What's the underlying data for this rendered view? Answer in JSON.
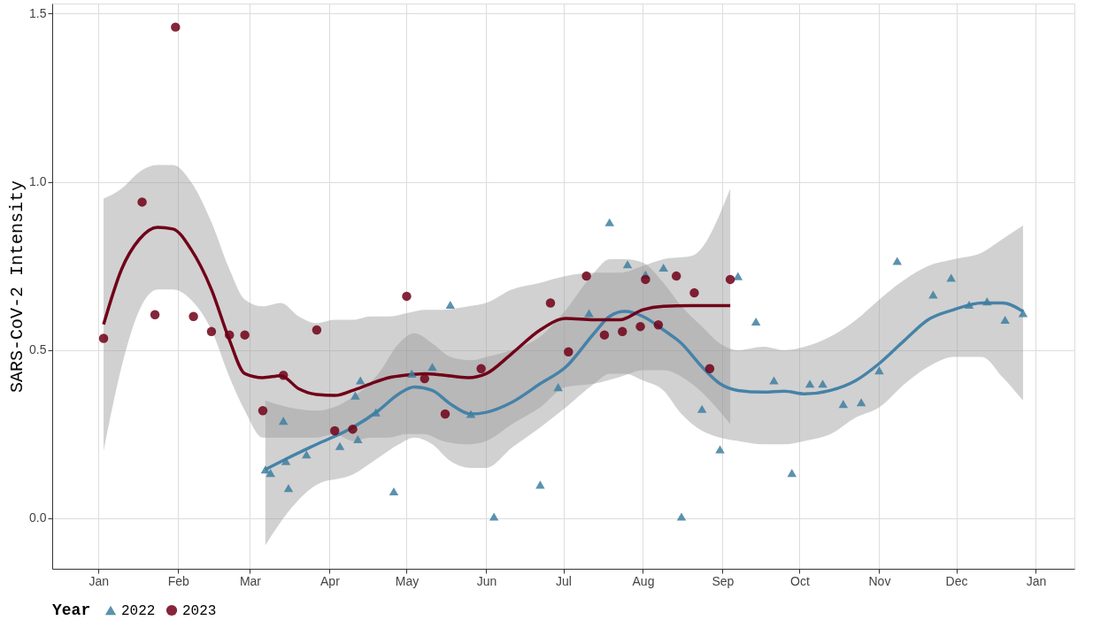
{
  "chart_data": {
    "type": "scatter",
    "ylabel": "SARS-CoV-2 Intensity",
    "legend_title": "Year",
    "legend": "bottom",
    "grid": true,
    "xlim": [
      "2022-12-14",
      "2024-01-16"
    ],
    "ylim": [
      -0.15,
      1.53
    ],
    "yticks": [
      {
        "value": 0,
        "label": "0.0"
      },
      {
        "value": 0.5,
        "label": "0.5"
      },
      {
        "value": 1,
        "label": "1.0"
      },
      {
        "value": 1.5,
        "label": "1.5"
      }
    ],
    "xticks": [
      {
        "value": "2023-01-01",
        "label": "Jan"
      },
      {
        "value": "2023-02-01",
        "label": "Feb"
      },
      {
        "value": "2023-03-01",
        "label": "Mar"
      },
      {
        "value": "2023-04-01",
        "label": "Apr"
      },
      {
        "value": "2023-05-01",
        "label": "May"
      },
      {
        "value": "2023-06-01",
        "label": "Jun"
      },
      {
        "value": "2023-07-01",
        "label": "Jul"
      },
      {
        "value": "2023-08-01",
        "label": "Aug"
      },
      {
        "value": "2023-09-01",
        "label": "Sep"
      },
      {
        "value": "2023-10-01",
        "label": "Oct"
      },
      {
        "value": "2023-11-01",
        "label": "Nov"
      },
      {
        "value": "2023-12-01",
        "label": "Dec"
      },
      {
        "value": "2024-01-01",
        "label": "Jan"
      }
    ],
    "series": [
      {
        "type": "line",
        "color": "#4682a8",
        "x": [
          "2023-03-07",
          "2023-03-16",
          "2023-03-27",
          "2023-04-10",
          "2023-04-20",
          "2023-04-28",
          "2023-05-04",
          "2023-05-11",
          "2023-05-18",
          "2023-05-26",
          "2023-06-01",
          "2023-06-11",
          "2023-06-22",
          "2023-07-02",
          "2023-07-13",
          "2023-07-19",
          "2023-07-25",
          "2023-08-01",
          "2023-08-09",
          "2023-08-16",
          "2023-08-24",
          "2023-08-31",
          "2023-09-07",
          "2023-09-17",
          "2023-09-25",
          "2023-10-03",
          "2023-10-13",
          "2023-10-23",
          "2023-11-01",
          "2023-11-11",
          "2023-11-20",
          "2023-11-30",
          "2023-12-11",
          "2023-12-19",
          "2023-12-27"
        ],
        "values": [
          0.145,
          0.18,
          0.22,
          0.27,
          0.32,
          0.37,
          0.39,
          0.38,
          0.34,
          0.31,
          0.315,
          0.345,
          0.4,
          0.45,
          0.55,
          0.6,
          0.615,
          0.6,
          0.56,
          0.52,
          0.45,
          0.4,
          0.38,
          0.375,
          0.378,
          0.37,
          0.38,
          0.41,
          0.46,
          0.53,
          0.59,
          0.62,
          0.64,
          0.64,
          0.615
        ],
        "lower": [
          -0.08,
          0.02,
          0.1,
          0.13,
          0.18,
          0.22,
          0.24,
          0.22,
          0.17,
          0.15,
          0.15,
          0.21,
          0.27,
          0.33,
          0.4,
          0.43,
          0.43,
          0.41,
          0.38,
          0.31,
          0.26,
          0.24,
          0.23,
          0.22,
          0.22,
          0.23,
          0.25,
          0.3,
          0.33,
          0.4,
          0.45,
          0.48,
          0.48,
          0.42,
          0.35
        ],
        "upper": [
          0.35,
          0.33,
          0.32,
          0.36,
          0.43,
          0.52,
          0.55,
          0.52,
          0.48,
          0.47,
          0.48,
          0.5,
          0.54,
          0.62,
          0.73,
          0.77,
          0.77,
          0.76,
          0.7,
          0.63,
          0.57,
          0.52,
          0.5,
          0.51,
          0.5,
          0.51,
          0.54,
          0.59,
          0.65,
          0.71,
          0.75,
          0.77,
          0.79,
          0.83,
          0.87
        ]
      },
      {
        "type": "line",
        "color": "#700018",
        "x": [
          "2023-01-03",
          "2023-01-10",
          "2023-01-17",
          "2023-01-24",
          "2023-01-30",
          "2023-02-06",
          "2023-02-14",
          "2023-02-21",
          "2023-02-27",
          "2023-03-06",
          "2023-03-13",
          "2023-03-20",
          "2023-03-27",
          "2023-04-03",
          "2023-04-10",
          "2023-04-17",
          "2023-04-24",
          "2023-05-01",
          "2023-05-08",
          "2023-05-15",
          "2023-05-25",
          "2023-06-01",
          "2023-06-11",
          "2023-06-22",
          "2023-07-02",
          "2023-07-13",
          "2023-07-23",
          "2023-08-01",
          "2023-08-09",
          "2023-08-20",
          "2023-09-04"
        ],
        "values": [
          0.576,
          0.74,
          0.83,
          0.865,
          0.86,
          0.8,
          0.68,
          0.53,
          0.43,
          0.418,
          0.424,
          0.385,
          0.368,
          0.365,
          0.38,
          0.4,
          0.418,
          0.426,
          0.43,
          0.426,
          0.418,
          0.43,
          0.49,
          0.56,
          0.594,
          0.59,
          0.59,
          0.62,
          0.63,
          0.632,
          0.632
        ],
        "lower": [
          0.2,
          0.45,
          0.62,
          0.68,
          0.68,
          0.65,
          0.56,
          0.42,
          0.32,
          0.24,
          0.24,
          0.24,
          0.24,
          0.25,
          0.23,
          0.24,
          0.24,
          0.25,
          0.25,
          0.23,
          0.22,
          0.23,
          0.28,
          0.33,
          0.39,
          0.4,
          0.42,
          0.44,
          0.44,
          0.4,
          0.28
        ],
        "upper": [
          0.95,
          0.98,
          1.03,
          1.05,
          1.05,
          1.0,
          0.88,
          0.74,
          0.65,
          0.63,
          0.64,
          0.6,
          0.58,
          0.59,
          0.59,
          0.6,
          0.6,
          0.61,
          0.62,
          0.62,
          0.63,
          0.64,
          0.68,
          0.7,
          0.72,
          0.73,
          0.73,
          0.75,
          0.77,
          0.78,
          0.98
        ]
      },
      {
        "type": "scatter",
        "name": "2022",
        "color": "#3f7fa0",
        "marker": "triangle",
        "x": [
          "2023-03-07",
          "2023-03-09",
          "2023-03-14",
          "2023-03-15",
          "2023-03-16",
          "2023-03-23",
          "2023-04-05",
          "2023-04-11",
          "2023-04-12",
          "2023-04-13",
          "2023-04-19",
          "2023-04-26",
          "2023-05-03",
          "2023-05-11",
          "2023-05-18",
          "2023-05-26",
          "2023-06-04",
          "2023-06-22",
          "2023-06-29",
          "2023-07-11",
          "2023-07-19",
          "2023-07-26",
          "2023-08-02",
          "2023-08-09",
          "2023-08-16",
          "2023-08-24",
          "2023-08-31",
          "2023-09-07",
          "2023-09-14",
          "2023-09-21",
          "2023-09-28",
          "2023-10-05",
          "2023-10-10",
          "2023-10-18",
          "2023-10-25",
          "2023-11-01",
          "2023-11-08",
          "2023-11-22",
          "2023-11-29",
          "2023-12-06",
          "2023-12-13",
          "2023-12-20",
          "2023-12-27"
        ],
        "values": [
          0.145,
          0.135,
          0.29,
          0.17,
          0.09,
          0.19,
          0.215,
          0.365,
          0.235,
          0.41,
          0.315,
          0.08,
          0.43,
          0.45,
          0.635,
          0.31,
          0.005,
          0.1,
          0.39,
          0.61,
          0.88,
          0.755,
          0.725,
          0.745,
          0.005,
          0.325,
          0.205,
          0.72,
          0.585,
          0.41,
          0.135,
          0.4,
          0.4,
          0.34,
          0.345,
          0.44,
          0.765,
          0.665,
          0.715,
          0.635,
          0.645,
          0.59,
          0.61
        ]
      },
      {
        "type": "scatter",
        "name": "2023",
        "color": "#700018",
        "marker": "circle",
        "x": [
          "2023-01-03",
          "2023-01-18",
          "2023-01-23",
          "2023-01-31",
          "2023-02-07",
          "2023-02-14",
          "2023-02-21",
          "2023-02-27",
          "2023-03-06",
          "2023-03-14",
          "2023-03-21",
          "2023-03-27",
          "2023-04-03",
          "2023-04-10",
          "2023-04-17",
          "2023-04-24",
          "2023-05-01",
          "2023-05-08",
          "2023-05-16",
          "2023-05-22",
          "2023-05-30",
          "2023-06-26",
          "2023-07-03",
          "2023-07-10",
          "2023-07-17",
          "2023-07-24",
          "2023-07-31",
          "2023-08-02",
          "2023-08-07",
          "2023-08-14",
          "2023-08-21",
          "2023-08-27",
          "2023-09-04"
        ],
        "values": [
          0.535,
          0.94,
          0.605,
          1.46,
          0.6,
          0.555,
          0.545,
          0.545,
          0.32,
          0.425,
          null,
          0.56,
          0.26,
          0.265,
          null,
          null,
          0.66,
          0.415,
          0.31,
          null,
          0.445,
          0.64,
          0.495,
          0.72,
          0.545,
          0.555,
          0.57,
          0.71,
          0.575,
          0.72,
          0.67,
          0.445,
          0.71
        ]
      }
    ]
  }
}
